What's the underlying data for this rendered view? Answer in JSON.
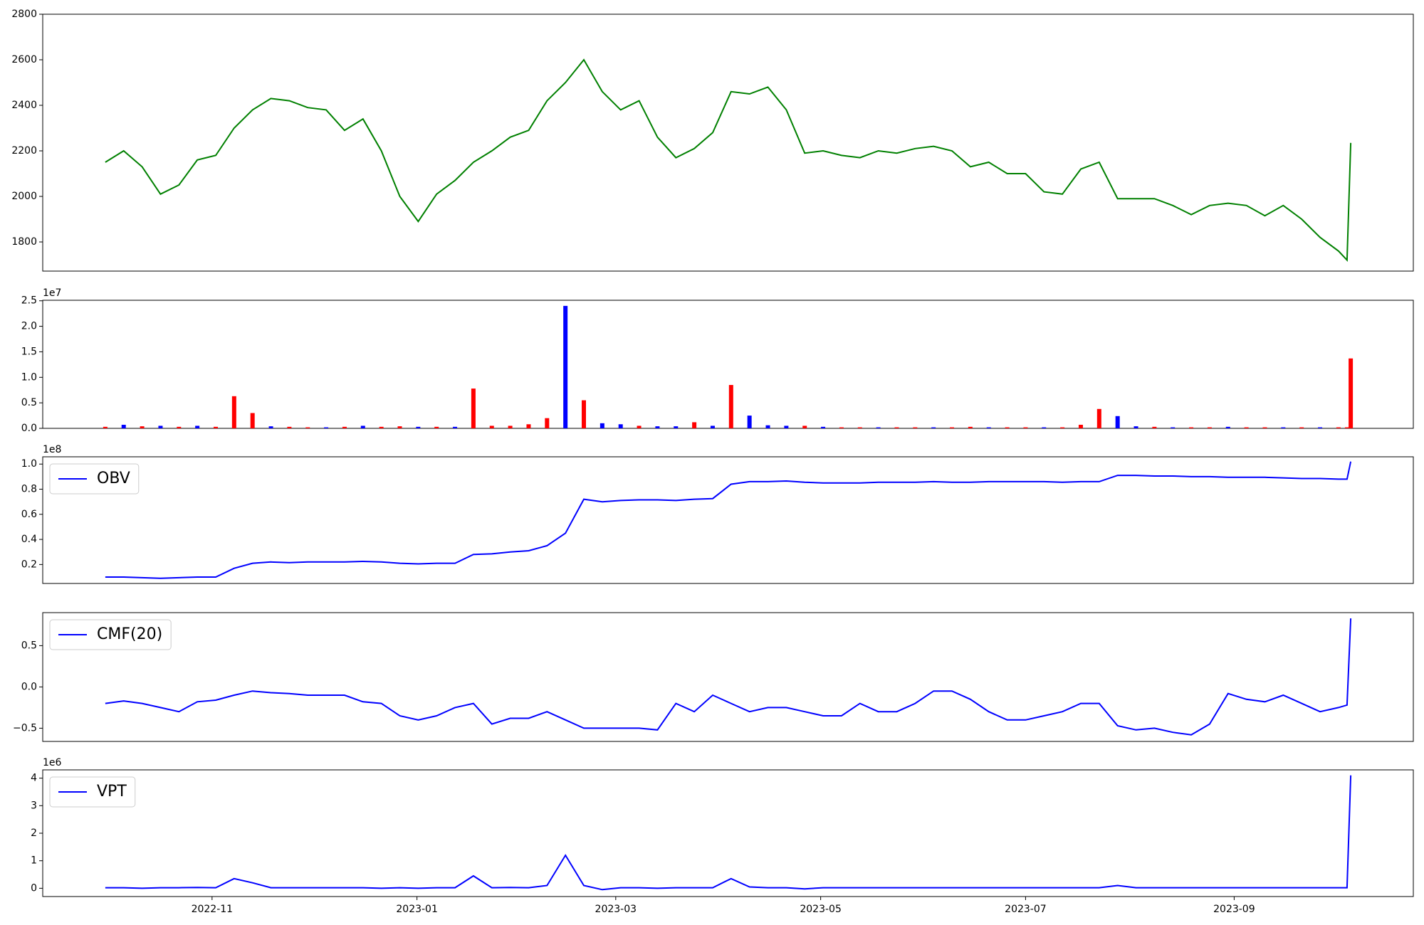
{
  "chart_data": [
    {
      "type": "line",
      "x": [
        2022.746,
        2022.761,
        2022.776,
        2022.791,
        2022.806,
        2022.821,
        2022.836,
        2022.851,
        2022.866,
        2022.881,
        2022.896,
        2022.911,
        2022.926,
        2022.941,
        2022.956,
        2022.971,
        2022.986,
        2023.001,
        2023.016,
        2023.031,
        2023.046,
        2023.061,
        2023.076,
        2023.091,
        2023.106,
        2023.121,
        2023.136,
        2023.151,
        2023.166,
        2023.181,
        2023.196,
        2023.211,
        2023.226,
        2023.241,
        2023.256,
        2023.271,
        2023.286,
        2023.301,
        2023.316,
        2023.331,
        2023.346,
        2023.361,
        2023.376,
        2023.391,
        2023.406,
        2023.421,
        2023.436,
        2023.451,
        2023.466,
        2023.481,
        2023.496,
        2023.511,
        2023.526,
        2023.541,
        2023.556,
        2023.571,
        2023.586,
        2023.601,
        2023.616,
        2023.631,
        2023.646,
        2023.661,
        2023.676,
        2023.691,
        2023.706,
        2023.721,
        2023.736,
        2023.751,
        2023.758,
        2023.761
      ],
      "xlim": [
        2022.695,
        2023.812
      ],
      "ylim": [
        1672,
        2800
      ],
      "yticks": [
        1800,
        2000,
        2200,
        2400,
        2600,
        2800
      ],
      "series": [
        {
          "color": "#008000",
          "values": [
            2150,
            2200,
            2130,
            2010,
            2050,
            2160,
            2180,
            2300,
            2380,
            2430,
            2420,
            2390,
            2380,
            2290,
            2340,
            2200,
            2000,
            1890,
            2010,
            2070,
            2150,
            2200,
            2260,
            2290,
            2420,
            2500,
            2600,
            2460,
            2380,
            2420,
            2260,
            2170,
            2210,
            2280,
            2460,
            2450,
            2480,
            2380,
            2190,
            2200,
            2180,
            2170,
            2200,
            2190,
            2210,
            2220,
            2200,
            2130,
            2150,
            2100,
            2100,
            2020,
            2010,
            2120,
            2150,
            1990,
            1990,
            1990,
            1960,
            1920,
            1960,
            1970,
            1960,
            1915,
            1960,
            1900,
            1820,
            1760,
            1720,
            2235
          ]
        }
      ]
    },
    {
      "type": "bar",
      "x": [
        2022.746,
        2022.761,
        2022.776,
        2022.791,
        2022.806,
        2022.821,
        2022.836,
        2022.851,
        2022.866,
        2022.881,
        2022.896,
        2022.911,
        2022.926,
        2022.941,
        2022.956,
        2022.971,
        2022.986,
        2023.001,
        2023.016,
        2023.031,
        2023.046,
        2023.061,
        2023.076,
        2023.091,
        2023.106,
        2023.121,
        2023.136,
        2023.151,
        2023.166,
        2023.181,
        2023.196,
        2023.211,
        2023.226,
        2023.241,
        2023.256,
        2023.271,
        2023.286,
        2023.301,
        2023.316,
        2023.331,
        2023.346,
        2023.361,
        2023.376,
        2023.391,
        2023.406,
        2023.421,
        2023.436,
        2023.451,
        2023.466,
        2023.481,
        2023.496,
        2023.511,
        2023.526,
        2023.541,
        2023.556,
        2023.571,
        2023.586,
        2023.601,
        2023.616,
        2023.631,
        2023.646,
        2023.661,
        2023.676,
        2023.691,
        2023.706,
        2023.721,
        2023.736,
        2023.751,
        2023.758,
        2023.761
      ],
      "xlim": [
        2022.695,
        2023.812
      ],
      "ylim": [
        0,
        2.51
      ],
      "yticks": [
        {
          "value": 0,
          "label": "0.0"
        },
        0.5,
        {
          "value": 1,
          "label": "1.0"
        },
        1.5,
        {
          "value": 2,
          "label": "2.0"
        },
        2.5
      ],
      "y_offset_label": "1e7",
      "values": [
        0.03,
        0.07,
        0.04,
        0.05,
        0.03,
        0.05,
        0.03,
        0.63,
        0.3,
        0.04,
        0.03,
        0.02,
        0.02,
        0.03,
        0.05,
        0.03,
        0.04,
        0.03,
        0.03,
        0.03,
        0.78,
        0.05,
        0.05,
        0.08,
        0.2,
        2.4,
        0.55,
        0.1,
        0.08,
        0.05,
        0.04,
        0.04,
        0.12,
        0.05,
        0.85,
        0.25,
        0.06,
        0.05,
        0.05,
        0.03,
        0.02,
        0.02,
        0.02,
        0.02,
        0.02,
        0.02,
        0.02,
        0.03,
        0.02,
        0.02,
        0.02,
        0.02,
        0.02,
        0.07,
        0.38,
        0.24,
        0.04,
        0.03,
        0.02,
        0.02,
        0.02,
        0.03,
        0.02,
        0.02,
        0.02,
        0.02,
        0.02,
        0.02,
        0.02,
        1.37
      ],
      "bar_colors": [
        "#ff0000",
        "#0000ff",
        "#ff0000",
        "#0000ff",
        "#ff0000",
        "#0000ff",
        "#ff0000",
        "#ff0000",
        "#ff0000",
        "#0000ff",
        "#ff0000",
        "#ff0000",
        "#0000ff",
        "#ff0000",
        "#0000ff",
        "#ff0000",
        "#ff0000",
        "#0000ff",
        "#ff0000",
        "#0000ff",
        "#ff0000",
        "#ff0000",
        "#ff0000",
        "#ff0000",
        "#ff0000",
        "#0000ff",
        "#ff0000",
        "#0000ff",
        "#0000ff",
        "#ff0000",
        "#0000ff",
        "#0000ff",
        "#ff0000",
        "#0000ff",
        "#ff0000",
        "#0000ff",
        "#0000ff",
        "#0000ff",
        "#ff0000",
        "#0000ff",
        "#ff0000",
        "#ff0000",
        "#0000ff",
        "#ff0000",
        "#ff0000",
        "#0000ff",
        "#ff0000",
        "#ff0000",
        "#0000ff",
        "#ff0000",
        "#ff0000",
        "#0000ff",
        "#ff0000",
        "#ff0000",
        "#ff0000",
        "#0000ff",
        "#0000ff",
        "#ff0000",
        "#0000ff",
        "#ff0000",
        "#ff0000",
        "#0000ff",
        "#ff0000",
        "#ff0000",
        "#0000ff",
        "#ff0000",
        "#0000ff",
        "#ff0000",
        "#ff0000",
        "#ff0000"
      ]
    },
    {
      "type": "line",
      "x": [
        2022.746,
        2022.761,
        2022.776,
        2022.791,
        2022.806,
        2022.821,
        2022.836,
        2022.851,
        2022.866,
        2022.881,
        2022.896,
        2022.911,
        2022.926,
        2022.941,
        2022.956,
        2022.971,
        2022.986,
        2023.001,
        2023.016,
        2023.031,
        2023.046,
        2023.061,
        2023.076,
        2023.091,
        2023.106,
        2023.121,
        2023.136,
        2023.151,
        2023.166,
        2023.181,
        2023.196,
        2023.211,
        2023.226,
        2023.241,
        2023.256,
        2023.271,
        2023.286,
        2023.301,
        2023.316,
        2023.331,
        2023.346,
        2023.361,
        2023.376,
        2023.391,
        2023.406,
        2023.421,
        2023.436,
        2023.451,
        2023.466,
        2023.481,
        2023.496,
        2023.511,
        2023.526,
        2023.541,
        2023.556,
        2023.571,
        2023.586,
        2023.601,
        2023.616,
        2023.631,
        2023.646,
        2023.661,
        2023.676,
        2023.691,
        2023.706,
        2023.721,
        2023.736,
        2023.751,
        2023.758,
        2023.761
      ],
      "xlim": [
        2022.695,
        2023.812
      ],
      "ylim": [
        0.049,
        1.058
      ],
      "yticks": [
        0.2,
        0.4,
        0.6,
        0.8,
        {
          "value": 1,
          "label": "1.0"
        }
      ],
      "y_offset_label": "1e8",
      "legend": "upper left",
      "series": [
        {
          "name": "OBV",
          "color": "#0000ff",
          "values": [
            0.1,
            0.1,
            0.095,
            0.09,
            0.095,
            0.1,
            0.1,
            0.17,
            0.21,
            0.22,
            0.215,
            0.22,
            0.22,
            0.22,
            0.225,
            0.22,
            0.21,
            0.205,
            0.21,
            0.21,
            0.28,
            0.285,
            0.3,
            0.31,
            0.35,
            0.45,
            0.72,
            0.7,
            0.71,
            0.715,
            0.715,
            0.71,
            0.72,
            0.725,
            0.84,
            0.86,
            0.86,
            0.865,
            0.855,
            0.85,
            0.85,
            0.85,
            0.855,
            0.855,
            0.855,
            0.86,
            0.855,
            0.855,
            0.86,
            0.86,
            0.86,
            0.86,
            0.855,
            0.86,
            0.86,
            0.91,
            0.91,
            0.905,
            0.905,
            0.9,
            0.9,
            0.895,
            0.895,
            0.895,
            0.89,
            0.885,
            0.885,
            0.88,
            0.88,
            1.02
          ]
        }
      ]
    },
    {
      "type": "line",
      "x": [
        2022.746,
        2022.761,
        2022.776,
        2022.791,
        2022.806,
        2022.821,
        2022.836,
        2022.851,
        2022.866,
        2022.881,
        2022.896,
        2022.911,
        2022.926,
        2022.941,
        2022.956,
        2022.971,
        2022.986,
        2023.001,
        2023.016,
        2023.031,
        2023.046,
        2023.061,
        2023.076,
        2023.091,
        2023.106,
        2023.121,
        2023.136,
        2023.151,
        2023.166,
        2023.181,
        2023.196,
        2023.211,
        2023.226,
        2023.241,
        2023.256,
        2023.271,
        2023.286,
        2023.301,
        2023.316,
        2023.331,
        2023.346,
        2023.361,
        2023.376,
        2023.391,
        2023.406,
        2023.421,
        2023.436,
        2023.451,
        2023.466,
        2023.481,
        2023.496,
        2023.511,
        2023.526,
        2023.541,
        2023.556,
        2023.571,
        2023.586,
        2023.601,
        2023.616,
        2023.631,
        2023.646,
        2023.661,
        2023.676,
        2023.691,
        2023.706,
        2023.721,
        2023.736,
        2023.751,
        2023.758,
        2023.761
      ],
      "xlim": [
        2022.695,
        2023.812
      ],
      "ylim": [
        -0.66,
        0.9
      ],
      "yticks": [
        {
          "value": -0.5,
          "label": "−0.5"
        },
        {
          "value": 0,
          "label": "0.0"
        },
        0.5
      ],
      "legend": "upper left",
      "series": [
        {
          "name": "CMF(20)",
          "color": "#0000ff",
          "values": [
            -0.2,
            -0.17,
            -0.2,
            -0.25,
            -0.3,
            -0.18,
            -0.16,
            -0.1,
            -0.05,
            -0.07,
            -0.08,
            -0.1,
            -0.1,
            -0.1,
            -0.18,
            -0.2,
            -0.35,
            -0.4,
            -0.35,
            -0.25,
            -0.2,
            -0.45,
            -0.38,
            -0.38,
            -0.3,
            -0.4,
            -0.5,
            -0.5,
            -0.5,
            -0.5,
            -0.52,
            -0.2,
            -0.3,
            -0.1,
            -0.2,
            -0.3,
            -0.25,
            -0.25,
            -0.3,
            -0.35,
            -0.35,
            -0.2,
            -0.3,
            -0.3,
            -0.2,
            -0.05,
            -0.05,
            -0.15,
            -0.3,
            -0.4,
            -0.4,
            -0.35,
            -0.3,
            -0.2,
            -0.2,
            -0.47,
            -0.52,
            -0.5,
            -0.55,
            -0.58,
            -0.45,
            -0.08,
            -0.15,
            -0.18,
            -0.1,
            -0.2,
            -0.3,
            -0.25,
            -0.22,
            0.83
          ]
        }
      ]
    },
    {
      "type": "line",
      "x": [
        2022.746,
        2022.761,
        2022.776,
        2022.791,
        2022.806,
        2022.821,
        2022.836,
        2022.851,
        2022.866,
        2022.881,
        2022.896,
        2022.911,
        2022.926,
        2022.941,
        2022.956,
        2022.971,
        2022.986,
        2023.001,
        2023.016,
        2023.031,
        2023.046,
        2023.061,
        2023.076,
        2023.091,
        2023.106,
        2023.121,
        2023.136,
        2023.151,
        2023.166,
        2023.181,
        2023.196,
        2023.211,
        2023.226,
        2023.241,
        2023.256,
        2023.271,
        2023.286,
        2023.301,
        2023.316,
        2023.331,
        2023.346,
        2023.361,
        2023.376,
        2023.391,
        2023.406,
        2023.421,
        2023.436,
        2023.451,
        2023.466,
        2023.481,
        2023.496,
        2023.511,
        2023.526,
        2023.541,
        2023.556,
        2023.571,
        2023.586,
        2023.601,
        2023.616,
        2023.631,
        2023.646,
        2023.661,
        2023.676,
        2023.691,
        2023.706,
        2023.721,
        2023.736,
        2023.751,
        2023.758,
        2023.761
      ],
      "xlim": [
        2022.695,
        2023.812
      ],
      "xticks": [
        {
          "value": 2022.833,
          "label": "2022-11"
        },
        {
          "value": 2023.0,
          "label": "2023-01"
        },
        {
          "value": 2023.162,
          "label": "2023-03"
        },
        {
          "value": 2023.329,
          "label": "2023-05"
        },
        {
          "value": 2023.496,
          "label": "2023-07"
        },
        {
          "value": 2023.666,
          "label": "2023-09"
        }
      ],
      "ylim": [
        -0.3,
        4.3
      ],
      "yticks": [
        0,
        1,
        2,
        3,
        4
      ],
      "y_offset_label": "1e6",
      "legend": "upper left",
      "series": [
        {
          "name": "VPT",
          "color": "#0000ff",
          "values": [
            0.02,
            0.02,
            0.0,
            0.02,
            0.02,
            0.03,
            0.02,
            0.35,
            0.2,
            0.02,
            0.02,
            0.02,
            0.02,
            0.02,
            0.02,
            0.0,
            0.02,
            0.0,
            0.02,
            0.02,
            0.45,
            0.02,
            0.03,
            0.02,
            0.1,
            1.2,
            0.1,
            -0.05,
            0.02,
            0.02,
            0.0,
            0.02,
            0.02,
            0.02,
            0.35,
            0.05,
            0.02,
            0.02,
            -0.02,
            0.02,
            0.02,
            0.02,
            0.02,
            0.02,
            0.02,
            0.02,
            0.02,
            0.02,
            0.02,
            0.02,
            0.02,
            0.02,
            0.02,
            0.02,
            0.02,
            0.1,
            0.02,
            0.02,
            0.02,
            0.02,
            0.02,
            0.02,
            0.02,
            0.02,
            0.02,
            0.02,
            0.02,
            0.02,
            0.02,
            4.1
          ]
        }
      ]
    }
  ]
}
